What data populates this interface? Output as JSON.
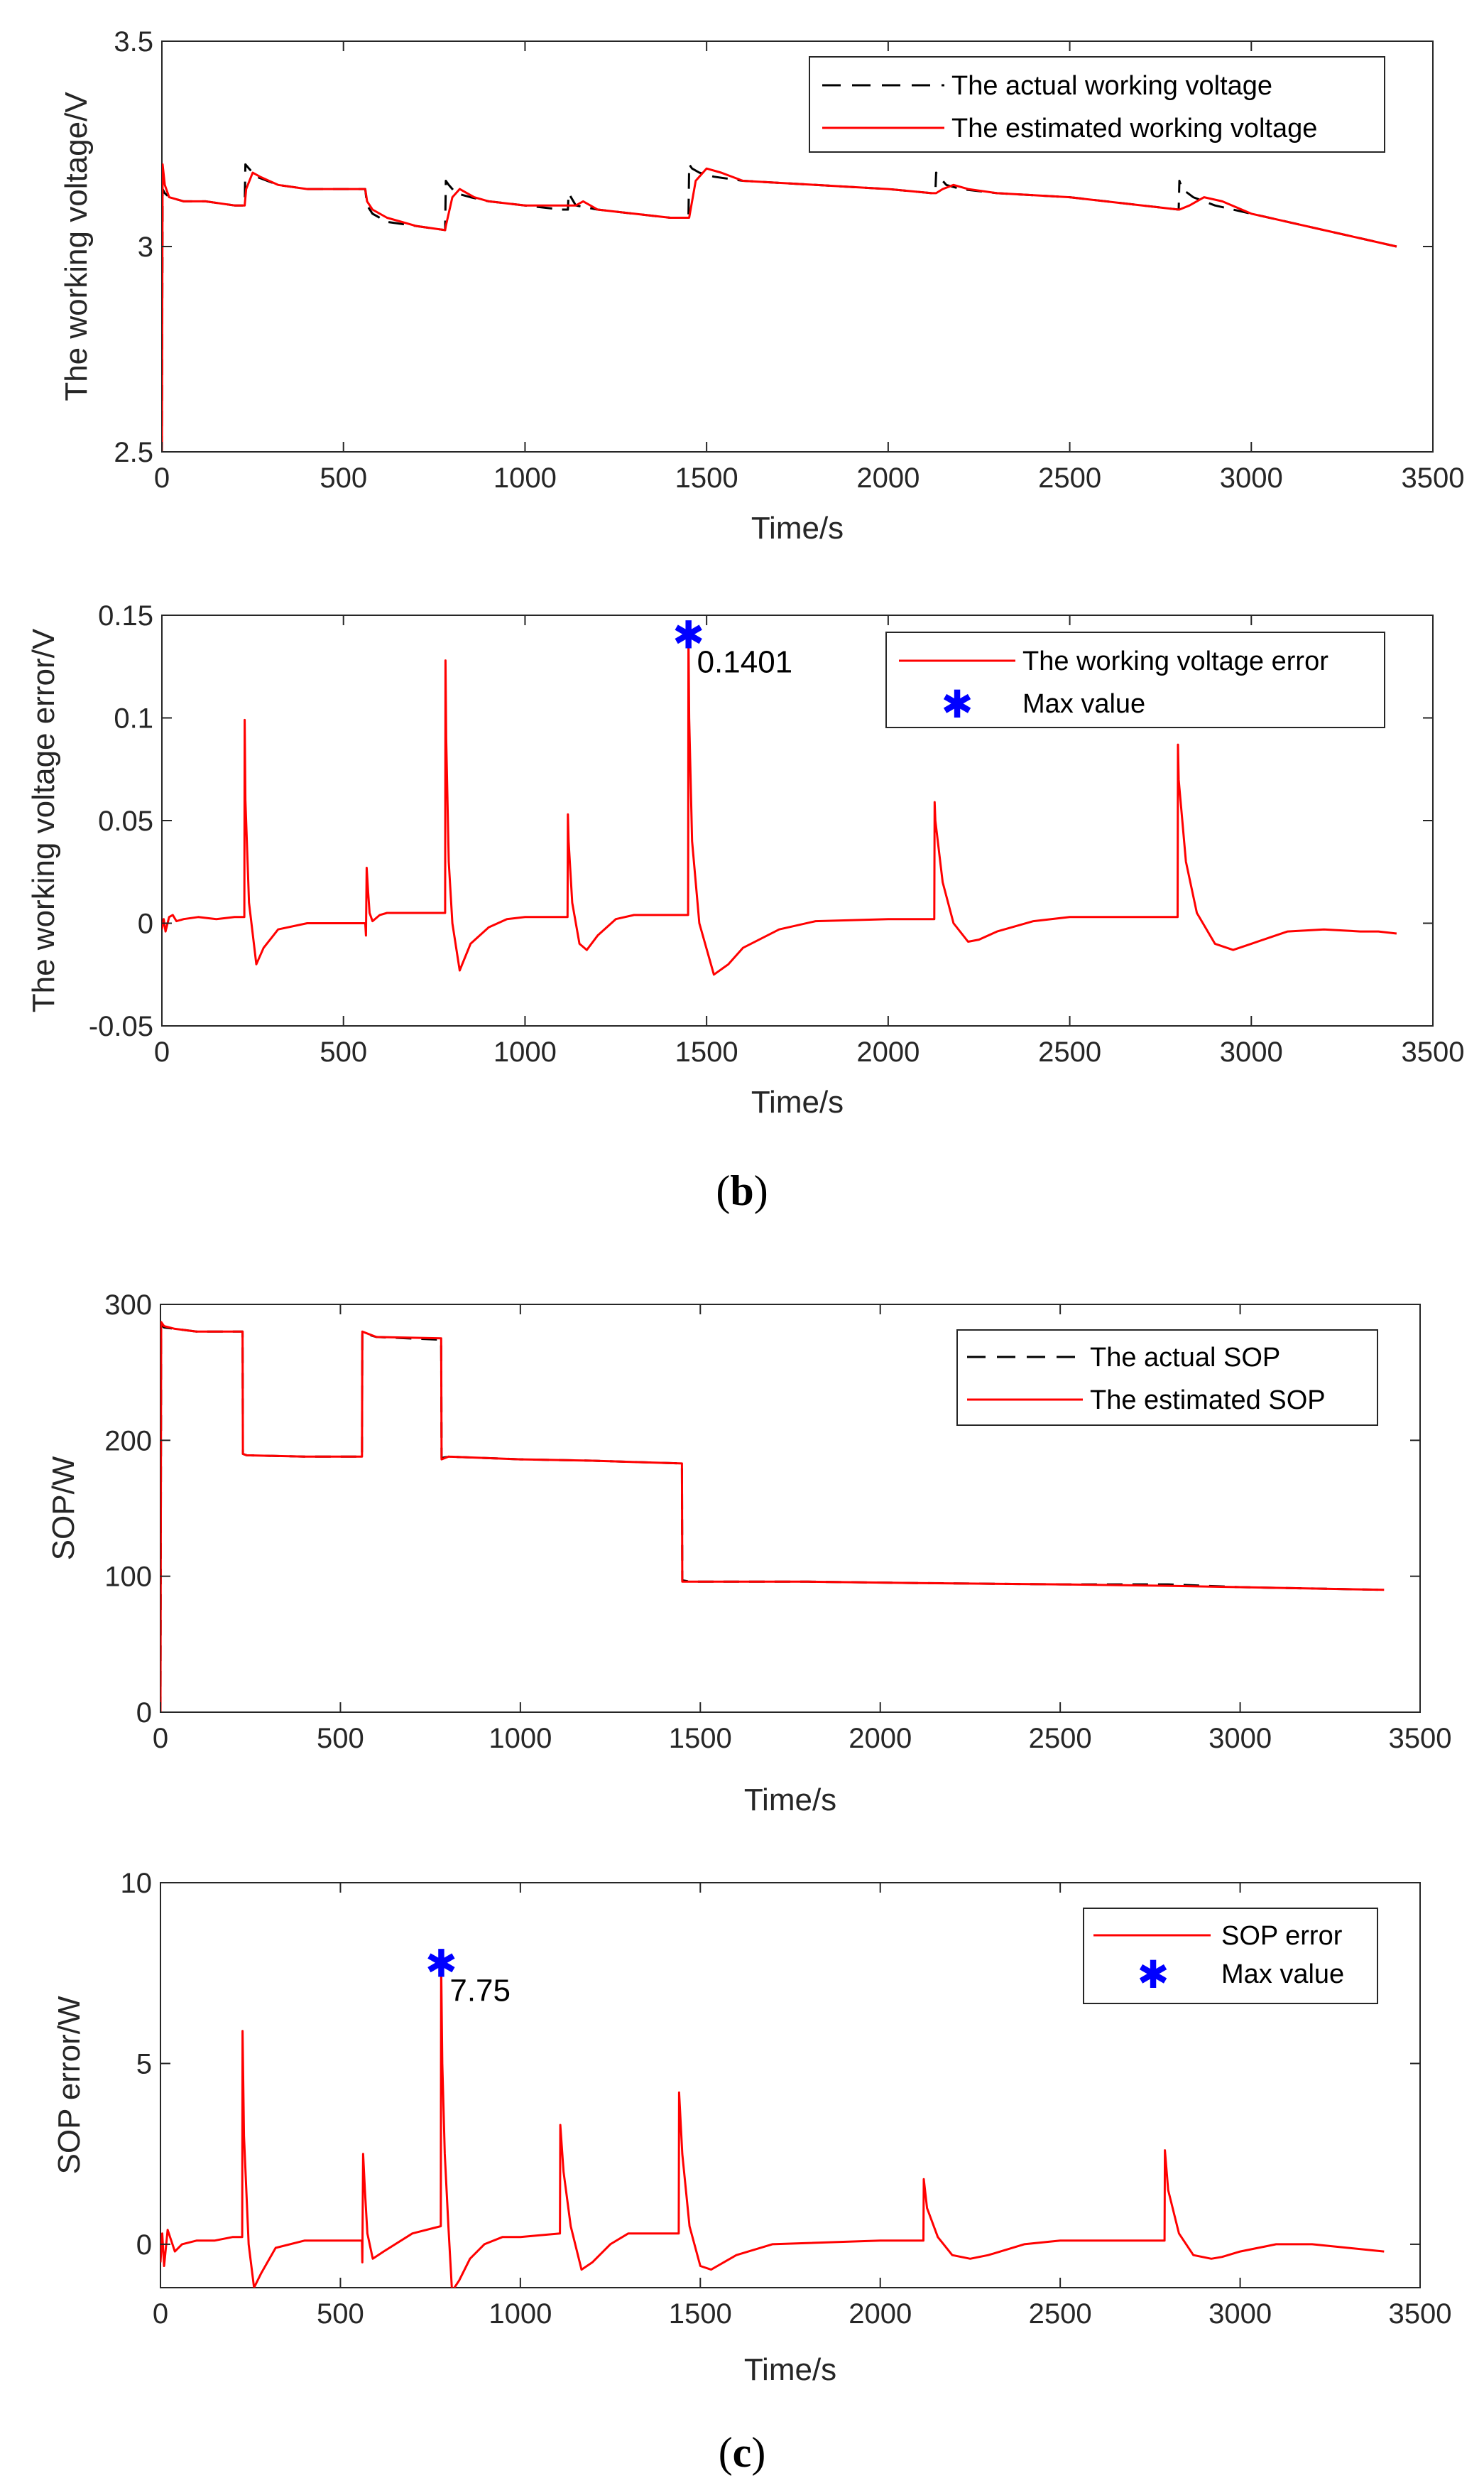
{
  "chart_data": [
    {
      "id": "voltage",
      "type": "line",
      "xlabel": "Time/s",
      "ylabel": "The working voltage/V",
      "xlim": [
        0,
        3500
      ],
      "ylim": [
        2.5,
        3.5
      ],
      "xticks": [
        "0",
        "500",
        "1000",
        "1500",
        "2000",
        "2500",
        "3000",
        "3500"
      ],
      "yticks": [
        "2.5",
        "3",
        "3.5"
      ],
      "legend_position": "top-right",
      "series": [
        {
          "name": "The actual working voltage",
          "style": "dashed",
          "color": "#000000",
          "x": [
            0,
            2,
            8,
            20,
            60,
            120,
            200,
            228,
            230,
            240,
            260,
            320,
            400,
            480,
            560,
            565,
            580,
            620,
            700,
            780,
            782,
            790,
            810,
            850,
            900,
            1000,
            1100,
            1118,
            1120,
            1140,
            1200,
            1300,
            1400,
            1450,
            1452,
            1460,
            1480,
            1520,
            1600,
            1800,
            2000,
            2120,
            2130,
            2132,
            2140,
            2160,
            2200,
            2300,
            2500,
            2700,
            2800,
            2802,
            2810,
            2840,
            2900,
            3000,
            3100,
            3200,
            3300,
            3400
          ],
          "y": [
            2.5,
            3.14,
            3.13,
            3.12,
            3.11,
            3.11,
            3.1,
            3.1,
            3.2,
            3.19,
            3.17,
            3.15,
            3.14,
            3.14,
            3.14,
            3.1,
            3.08,
            3.06,
            3.05,
            3.04,
            3.16,
            3.15,
            3.13,
            3.12,
            3.11,
            3.1,
            3.09,
            3.09,
            3.13,
            3.1,
            3.09,
            3.08,
            3.07,
            3.07,
            3.2,
            3.19,
            3.18,
            3.17,
            3.16,
            3.15,
            3.14,
            3.13,
            3.13,
            3.18,
            3.17,
            3.15,
            3.14,
            3.13,
            3.12,
            3.1,
            3.09,
            3.16,
            3.14,
            3.12,
            3.1,
            3.08,
            3.06,
            3.04,
            3.02,
            3.0
          ]
        },
        {
          "name": "The estimated working voltage",
          "style": "solid",
          "color": "#ff0000",
          "x": [
            0,
            2,
            8,
            20,
            60,
            120,
            200,
            228,
            232,
            250,
            270,
            320,
            400,
            480,
            560,
            565,
            580,
            620,
            700,
            780,
            782,
            800,
            820,
            860,
            900,
            1000,
            1100,
            1118,
            1120,
            1140,
            1160,
            1200,
            1300,
            1400,
            1450,
            1452,
            1470,
            1500,
            1540,
            1600,
            1800,
            2000,
            2120,
            2130,
            2132,
            2150,
            2180,
            2220,
            2300,
            2500,
            2700,
            2800,
            2802,
            2830,
            2870,
            2920,
            3000,
            3100,
            3200,
            3300,
            3400
          ],
          "y": [
            2.5,
            3.2,
            3.15,
            3.12,
            3.11,
            3.11,
            3.1,
            3.1,
            3.14,
            3.18,
            3.17,
            3.15,
            3.14,
            3.14,
            3.14,
            3.11,
            3.09,
            3.07,
            3.05,
            3.04,
            3.05,
            3.12,
            3.14,
            3.12,
            3.11,
            3.1,
            3.1,
            3.1,
            3.1,
            3.1,
            3.11,
            3.09,
            3.08,
            3.07,
            3.07,
            3.07,
            3.16,
            3.19,
            3.18,
            3.16,
            3.15,
            3.14,
            3.13,
            3.13,
            3.13,
            3.14,
            3.15,
            3.14,
            3.13,
            3.12,
            3.1,
            3.09,
            3.09,
            3.1,
            3.12,
            3.11,
            3.08,
            3.06,
            3.04,
            3.02,
            3.0
          ]
        }
      ]
    },
    {
      "id": "voltage_error",
      "type": "line",
      "xlabel": "Time/s",
      "ylabel": "The working voltage error/V",
      "xlim": [
        0,
        3500
      ],
      "ylim": [
        -0.05,
        0.15
      ],
      "xticks": [
        "0",
        "500",
        "1000",
        "1500",
        "2000",
        "2500",
        "3000",
        "3500"
      ],
      "yticks": [
        "-0.05",
        "0",
        "0.05",
        "0.1",
        "0.15"
      ],
      "legend_position": "top-right",
      "series": [
        {
          "name": "The working voltage error",
          "style": "solid",
          "color": "#ff0000",
          "x": [
            0,
            5,
            10,
            20,
            30,
            40,
            60,
            100,
            150,
            200,
            227,
            228,
            230,
            240,
            260,
            280,
            320,
            400,
            480,
            560,
            562,
            564,
            568,
            572,
            580,
            600,
            620,
            700,
            780,
            781,
            783,
            790,
            800,
            820,
            850,
            900,
            950,
            1000,
            1100,
            1117,
            1118,
            1120,
            1130,
            1150,
            1170,
            1200,
            1250,
            1300,
            1400,
            1449,
            1450,
            1452,
            1460,
            1480,
            1520,
            1560,
            1600,
            1700,
            1800,
            2000,
            2127,
            2128,
            2130,
            2150,
            2180,
            2220,
            2250,
            2300,
            2400,
            2500,
            2600,
            2700,
            2797,
            2798,
            2800,
            2820,
            2850,
            2900,
            2950,
            3000,
            3050,
            3100,
            3200,
            3300,
            3350,
            3400
          ],
          "y": [
            -0.003,
            0.002,
            -0.004,
            0.003,
            0.004,
            0.001,
            0.002,
            0.003,
            0.002,
            0.003,
            0.003,
            0.099,
            0.06,
            0.01,
            -0.02,
            -0.012,
            -0.003,
            0.0,
            0.0,
            0.0,
            -0.006,
            0.027,
            0.015,
            0.005,
            0.001,
            0.004,
            0.005,
            0.005,
            0.005,
            0.128,
            0.09,
            0.03,
            0.0,
            -0.023,
            -0.01,
            -0.002,
            0.002,
            0.003,
            0.003,
            0.003,
            0.053,
            0.04,
            0.01,
            -0.01,
            -0.013,
            -0.006,
            0.002,
            0.004,
            0.004,
            0.004,
            0.1401,
            0.1,
            0.04,
            0.0,
            -0.025,
            -0.02,
            -0.012,
            -0.003,
            0.001,
            0.002,
            0.002,
            0.059,
            0.05,
            0.02,
            0.0,
            -0.009,
            -0.008,
            -0.004,
            0.001,
            0.003,
            0.003,
            0.003,
            0.003,
            0.087,
            0.07,
            0.03,
            0.005,
            -0.01,
            -0.013,
            -0.01,
            -0.007,
            -0.004,
            -0.003,
            -0.004,
            -0.004,
            -0.005
          ]
        }
      ],
      "max_marker": {
        "name": "Max value",
        "x": 1450,
        "y": 0.1401,
        "label": "0.1401",
        "color": "#0000ff"
      }
    },
    {
      "id": "sop",
      "type": "line",
      "xlabel": "Time/s",
      "ylabel": "SOP/W",
      "xlim": [
        0,
        3500
      ],
      "ylim": [
        0,
        300
      ],
      "xticks": [
        "0",
        "500",
        "1000",
        "1500",
        "2000",
        "2500",
        "3000",
        "3500"
      ],
      "yticks": [
        "0",
        "100",
        "200",
        "300"
      ],
      "legend_position": "top-right",
      "series": [
        {
          "name": "The actual SOP",
          "style": "dashed",
          "color": "#000000",
          "x": [
            0,
            2,
            10,
            40,
            100,
            228,
            229,
            240,
            400,
            560,
            561,
            600,
            780,
            781,
            800,
            1000,
            1200,
            1449,
            1450,
            1470,
            1800,
            2100,
            2500,
            2800,
            3000,
            3400
          ],
          "y": [
            0,
            285,
            283,
            282,
            280,
            280,
            190,
            189,
            188,
            188,
            279,
            276,
            274,
            187,
            188,
            186,
            185,
            183,
            97,
            96,
            96,
            95,
            94,
            94,
            92,
            90
          ]
        },
        {
          "name": "The estimated SOP",
          "style": "solid",
          "color": "#ff0000",
          "x": [
            0,
            2,
            10,
            40,
            100,
            228,
            229,
            240,
            400,
            560,
            561,
            600,
            780,
            781,
            800,
            1000,
            1200,
            1449,
            1450,
            1470,
            1800,
            2100,
            2500,
            2800,
            3000,
            3400
          ],
          "y": [
            0,
            287,
            284,
            282,
            280,
            280,
            190,
            189,
            188,
            188,
            280,
            276,
            275,
            186,
            188,
            186,
            185,
            183,
            96,
            96,
            96,
            95,
            94,
            93,
            92,
            90
          ]
        }
      ]
    },
    {
      "id": "sop_error",
      "type": "line",
      "xlabel": "Time/s",
      "ylabel": "SOP error/W",
      "xlim": [
        0,
        3500
      ],
      "ylim": [
        -1.2,
        10
      ],
      "xticks": [
        "0",
        "500",
        "1000",
        "1500",
        "2000",
        "2500",
        "3000",
        "3500"
      ],
      "yticks": [
        "0",
        "5",
        "10"
      ],
      "legend_position": "top-right",
      "series": [
        {
          "name": "SOP error",
          "style": "solid",
          "color": "#ff0000",
          "x": [
            0,
            5,
            10,
            20,
            30,
            40,
            60,
            100,
            150,
            200,
            227,
            228,
            232,
            245,
            260,
            280,
            320,
            400,
            480,
            560,
            561,
            563,
            568,
            575,
            590,
            620,
            700,
            779,
            780,
            783,
            790,
            800,
            810,
            830,
            860,
            900,
            950,
            1000,
            1110,
            1111,
            1120,
            1140,
            1170,
            1200,
            1250,
            1300,
            1440,
            1441,
            1450,
            1470,
            1500,
            1530,
            1600,
            1700,
            2000,
            2120,
            2121,
            2130,
            2160,
            2200,
            2250,
            2300,
            2400,
            2500,
            2600,
            2790,
            2791,
            2800,
            2830,
            2870,
            2920,
            2950,
            3000,
            3100,
            3200,
            3300,
            3400
          ],
          "y": [
            -0.5,
            0.3,
            -0.6,
            0.4,
            0.1,
            -0.2,
            0.0,
            0.1,
            0.1,
            0.2,
            0.2,
            5.9,
            3.0,
            0.0,
            -1.2,
            -0.8,
            -0.1,
            0.1,
            0.1,
            0.1,
            -0.5,
            2.5,
            1.5,
            0.3,
            -0.4,
            -0.2,
            0.3,
            0.5,
            7.75,
            5.0,
            2.5,
            0.5,
            -1.3,
            -1.0,
            -0.4,
            0.0,
            0.2,
            0.2,
            0.3,
            3.3,
            2.0,
            0.5,
            -0.7,
            -0.5,
            0.0,
            0.3,
            0.3,
            4.2,
            2.5,
            0.5,
            -0.6,
            -0.7,
            -0.3,
            0.0,
            0.1,
            0.1,
            1.8,
            1.0,
            0.2,
            -0.3,
            -0.4,
            -0.3,
            0.0,
            0.1,
            0.1,
            0.1,
            2.6,
            1.5,
            0.3,
            -0.3,
            -0.4,
            -0.35,
            -0.2,
            0.0,
            0.0,
            -0.1,
            -0.2
          ]
        }
      ],
      "max_marker": {
        "name": "Max value",
        "x": 780,
        "y": 7.75,
        "label": "7.75",
        "color": "#0000ff"
      }
    }
  ],
  "captions": {
    "b": "b",
    "c": "c"
  }
}
